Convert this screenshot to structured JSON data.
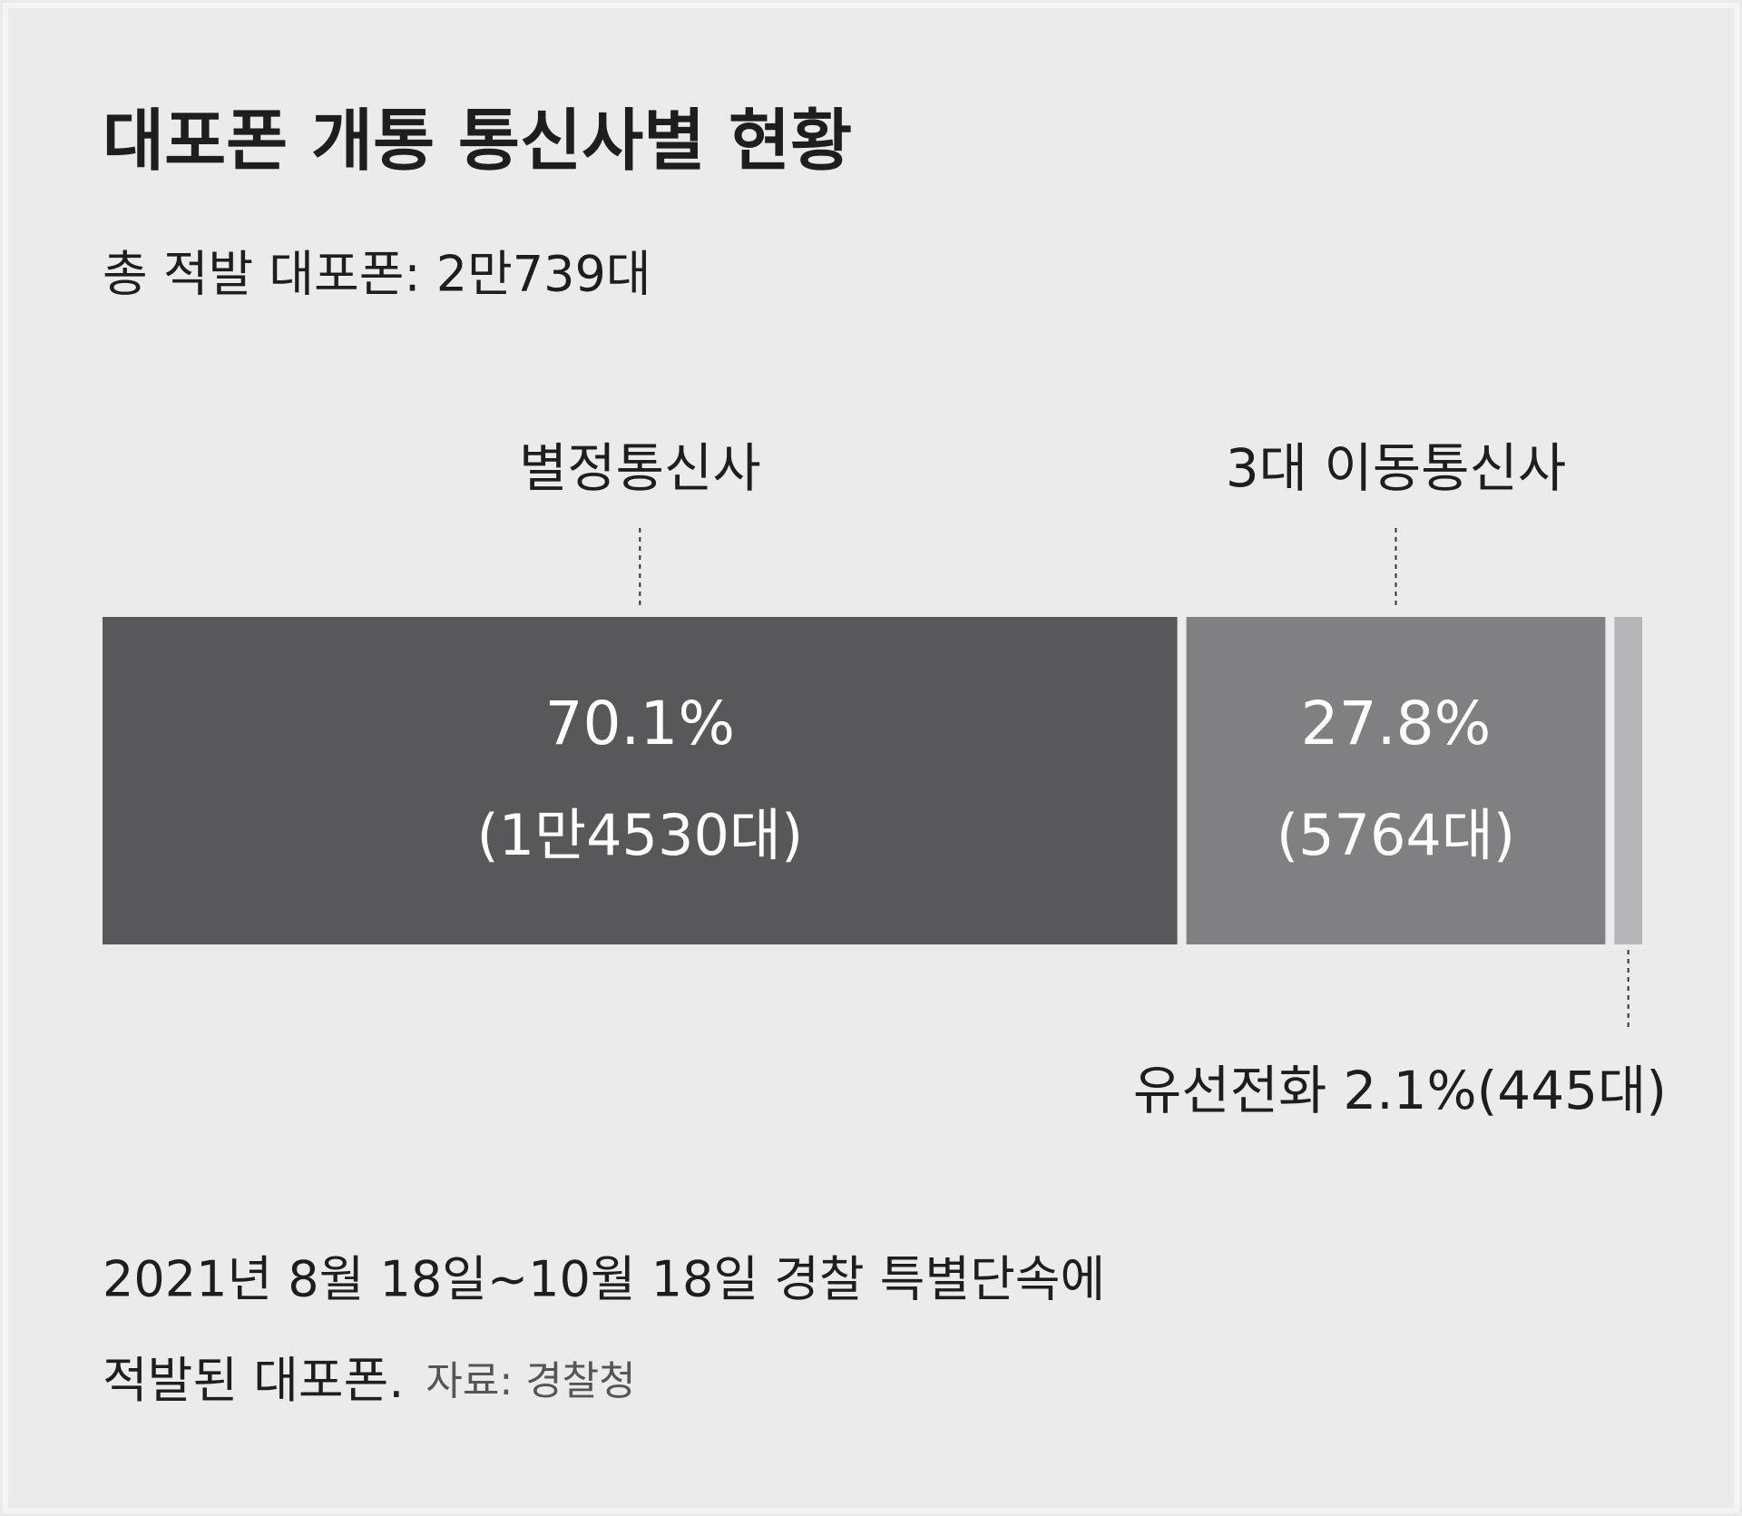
{
  "chart_data": {
    "type": "stacked-bar",
    "title": "대포폰 개통 통신사별 현황",
    "subtitle": "총 적발 대포폰: 2만739대",
    "series": [
      {
        "name": "별정통신사",
        "color": "#58585a",
        "values": [
          70.1
        ],
        "value_labels": [
          "70.1%"
        ],
        "counts": [
          14530
        ],
        "count_labels": [
          "(1만4530대)"
        ]
      },
      {
        "name": "3대 이동통신사",
        "color": "#808082",
        "values": [
          27.8
        ],
        "value_labels": [
          "27.8%"
        ],
        "counts": [
          5764
        ],
        "count_labels": [
          "(5764대)"
        ]
      },
      {
        "name": "유선전화",
        "color": "#b6b6b8",
        "values": [
          2.1
        ],
        "value_labels": [
          "2.1%"
        ],
        "counts": [
          445
        ],
        "count_labels": [
          "(445대)"
        ]
      }
    ],
    "note": [
      "2021년 8월 18일~10월 18일 경찰 특별단속에",
      "적발된 대포폰."
    ],
    "source": "자료: 경찰청"
  }
}
